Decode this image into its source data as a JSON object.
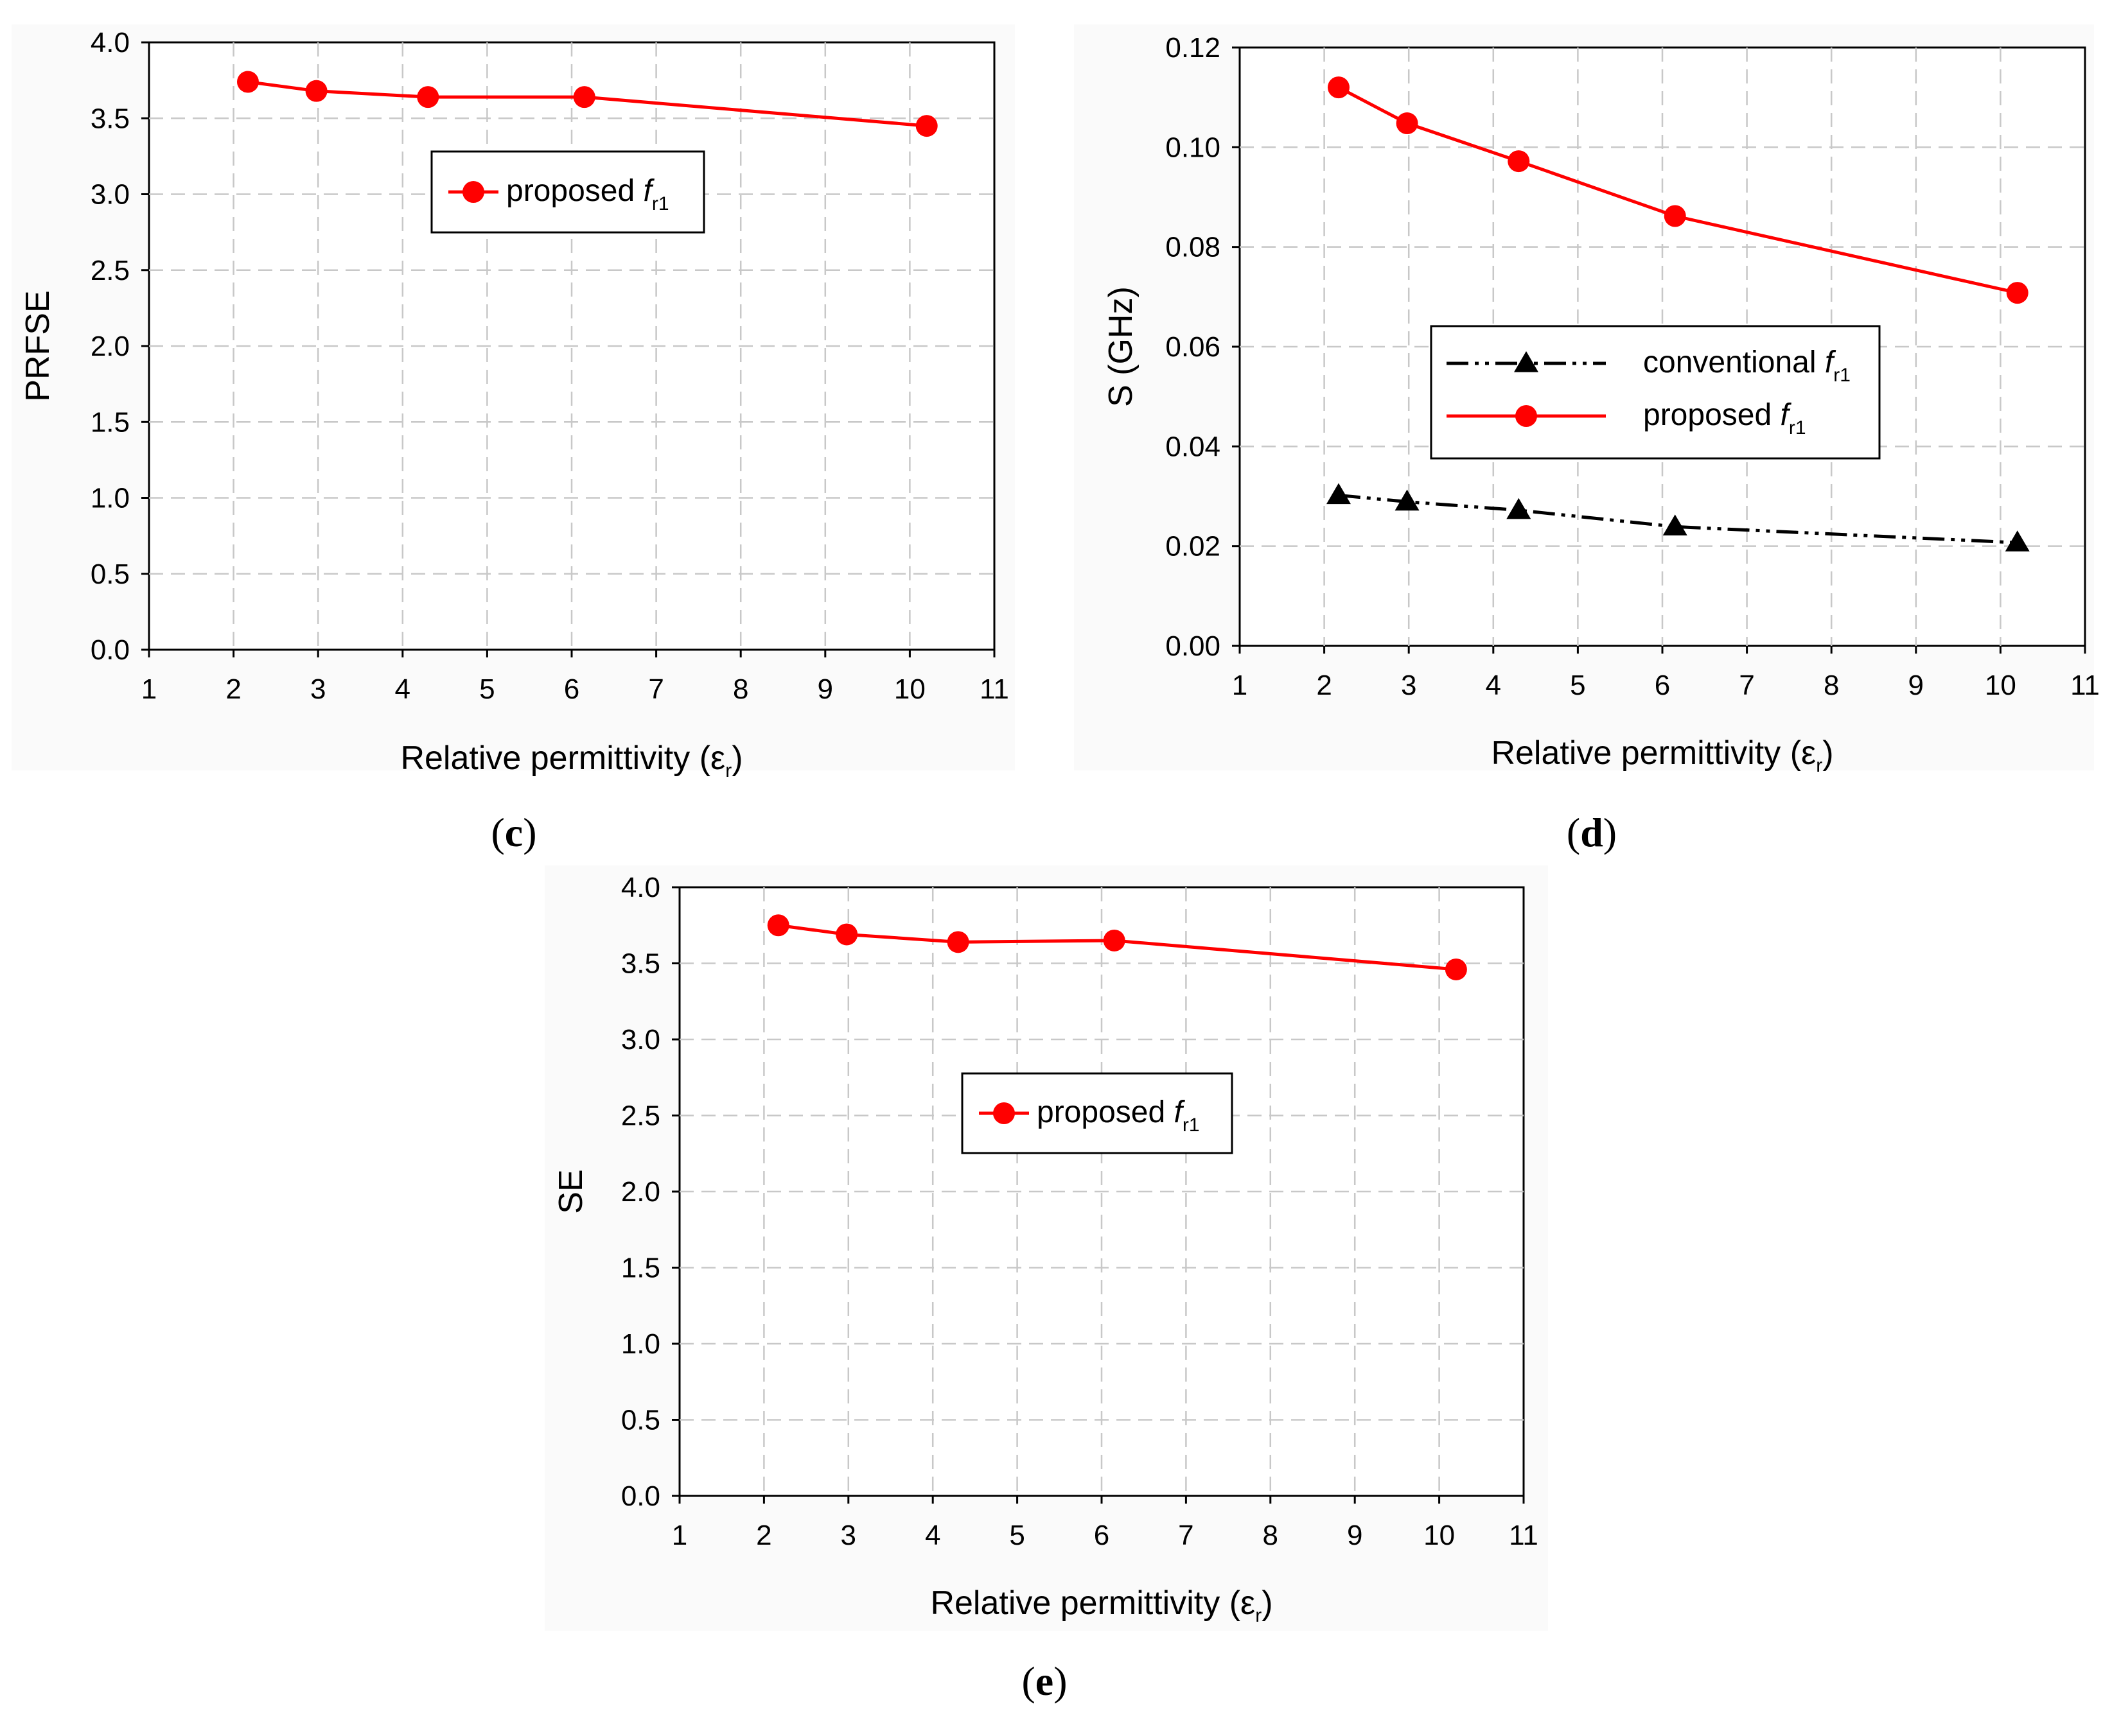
{
  "colors": {
    "proposed": "#ff0000",
    "conventional": "#000000",
    "grid": "#c8c8c8"
  },
  "chart_data": [
    {
      "id": "c",
      "panel_label": "c",
      "type": "line",
      "xlabel": "Relative permittivity",
      "xlabel_symbol": "ε",
      "xlabel_symbol_sub": "r",
      "ylabel": "PRFSE",
      "xlim": [
        1,
        11
      ],
      "ylim": [
        0,
        4.0
      ],
      "x_ticks": [
        "1",
        "2",
        "3",
        "4",
        "5",
        "6",
        "7",
        "8",
        "9",
        "10",
        "11"
      ],
      "y_ticks": [
        "0.0",
        "0.5",
        "1.0",
        "1.5",
        "2.0",
        "2.5",
        "3.0",
        "3.5",
        "4.0"
      ],
      "grid": true,
      "legend_position": "top-center",
      "series": [
        {
          "name": "proposed",
          "legend_prefix": "proposed",
          "legend_var": "f",
          "legend_sub": "r1",
          "color": "#ff0000",
          "marker": "circle",
          "line_style": "solid",
          "x": [
            2.17,
            2.98,
            4.3,
            6.15,
            10.2
          ],
          "values": [
            3.74,
            3.68,
            3.64,
            3.64,
            3.45
          ]
        }
      ]
    },
    {
      "id": "d",
      "panel_label": "d",
      "type": "line",
      "xlabel": "Relative permittivity",
      "xlabel_symbol": "ε",
      "xlabel_symbol_sub": "r",
      "ylabel": "S (GHz)",
      "xlim": [
        1,
        11
      ],
      "ylim": [
        0,
        0.12
      ],
      "x_ticks": [
        "1",
        "2",
        "3",
        "4",
        "5",
        "6",
        "7",
        "8",
        "9",
        "10",
        "11"
      ],
      "y_ticks": [
        "0.00",
        "0.02",
        "0.04",
        "0.06",
        "0.08",
        "0.10",
        "0.12"
      ],
      "grid": true,
      "legend_position": "center-right",
      "series": [
        {
          "name": "conventional",
          "legend_prefix": "conventional",
          "legend_var": "f",
          "legend_sub": "r1",
          "color": "#000000",
          "marker": "triangle",
          "line_style": "dash-dot-dot",
          "x": [
            2.17,
            2.98,
            4.3,
            6.15,
            10.2
          ],
          "values": [
            0.0302,
            0.0289,
            0.0272,
            0.0239,
            0.0207
          ]
        },
        {
          "name": "proposed",
          "legend_prefix": "proposed",
          "legend_var": "f",
          "legend_sub": "r1",
          "color": "#ff0000",
          "marker": "circle",
          "line_style": "solid",
          "x": [
            2.17,
            2.98,
            4.3,
            6.15,
            10.2
          ],
          "values": [
            0.112,
            0.1048,
            0.0972,
            0.0862,
            0.0708
          ]
        }
      ]
    },
    {
      "id": "e",
      "panel_label": "e",
      "type": "line",
      "xlabel": "Relative permittivity",
      "xlabel_symbol": "ε",
      "xlabel_symbol_sub": "r",
      "ylabel": "SE",
      "xlim": [
        1,
        11
      ],
      "ylim": [
        0,
        4.0
      ],
      "x_ticks": [
        "1",
        "2",
        "3",
        "4",
        "5",
        "6",
        "7",
        "8",
        "9",
        "10",
        "11"
      ],
      "y_ticks": [
        "0.0",
        "0.5",
        "1.0",
        "1.5",
        "2.0",
        "2.5",
        "3.0",
        "3.5",
        "4.0"
      ],
      "grid": true,
      "legend_position": "center",
      "series": [
        {
          "name": "proposed",
          "legend_prefix": "proposed",
          "legend_var": "f",
          "legend_sub": "r1",
          "color": "#ff0000",
          "marker": "circle",
          "line_style": "solid",
          "x": [
            2.17,
            2.98,
            4.3,
            6.15,
            10.2
          ],
          "values": [
            3.75,
            3.69,
            3.64,
            3.65,
            3.46
          ]
        }
      ]
    }
  ]
}
